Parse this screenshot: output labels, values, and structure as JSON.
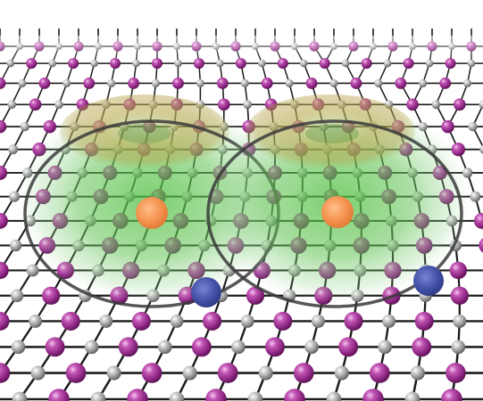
{
  "figure": {
    "subject": "crystal-lattice-with-orbital-clouds",
    "colors": {
      "background": "#ffffff",
      "bond": "#1c1c1c",
      "large_atom": "#9b2d8e",
      "large_atom_highlight": "#e9a6df",
      "small_atom": "#8a8a8a",
      "small_atom_highlight": "#f2f2f2",
      "cloud_green": "#59c24a",
      "cloud_yellow": "#c8b24a",
      "ring": "#3a3a3a",
      "orange_dot": "#f4924f",
      "blue_dot": "#4453a8"
    },
    "clouds": [
      {
        "name": "left-orbital-cloud",
        "has_orange_center": true,
        "has_blue_satellite": true
      },
      {
        "name": "right-orbital-cloud",
        "has_orange_center": true,
        "has_blue_satellite": true
      }
    ]
  }
}
